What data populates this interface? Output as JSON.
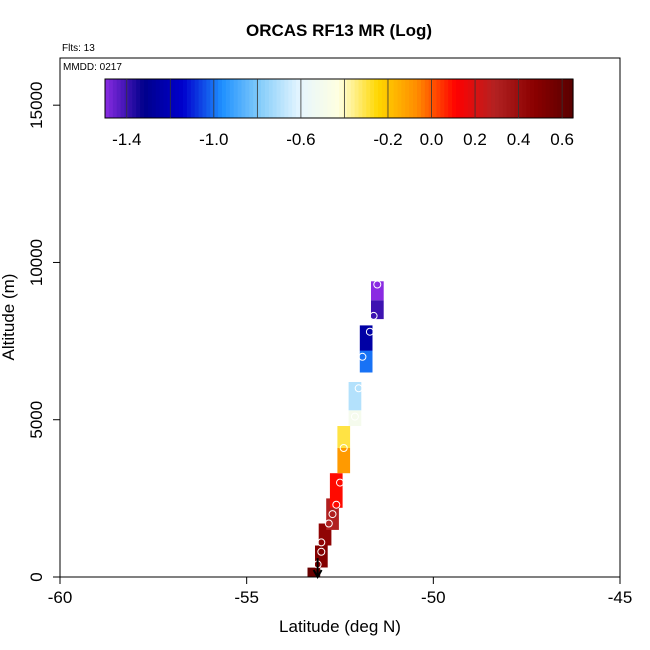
{
  "chart_data": {
    "type": "scatter",
    "title": "ORCAS RF13 MR (Log)",
    "flights_label": "Flts: 13",
    "date_label": "MMDD: 0217",
    "xlabel": "Latitude (deg N)",
    "ylabel": "Altitude (m)",
    "xlim": [
      -60,
      -45
    ],
    "ylim": [
      0,
      16500
    ],
    "x_ticks": [
      -60,
      -55,
      -50,
      -45
    ],
    "y_ticks": [
      0,
      5000,
      10000,
      15000
    ],
    "grid": false,
    "colorbar": {
      "placement": "top",
      "range": [
        -1.5,
        0.65
      ],
      "tick_values": [
        -1.4,
        -1.0,
        -0.6,
        -0.2,
        0.0,
        0.2,
        0.4,
        0.6
      ],
      "tick_labels": [
        "-1.4",
        "-1.0",
        "-0.6",
        "-0.2",
        "0.0",
        "0.2",
        "0.4",
        "0.6"
      ],
      "colors": [
        "#8a2be2",
        "#00008b",
        "#0000cd",
        "#1e90ff",
        "#87cefa",
        "#e6f6ff",
        "#ffffe0",
        "#ffd700",
        "#ff8c00",
        "#ff0000",
        "#b22222",
        "#8b0000",
        "#5a0000"
      ]
    },
    "segments": [
      {
        "lat": -53.2,
        "alt_min": 0,
        "alt_max": 300,
        "value": 0.6
      },
      {
        "lat": -53.0,
        "alt_min": 300,
        "alt_max": 1000,
        "value": 0.5
      },
      {
        "lat": -52.9,
        "alt_min": 1000,
        "alt_max": 1700,
        "value": 0.45
      },
      {
        "lat": -52.7,
        "alt_min": 1500,
        "alt_max": 2500,
        "value": 0.3
      },
      {
        "lat": -52.6,
        "alt_min": 2200,
        "alt_max": 3300,
        "value": 0.1
      },
      {
        "lat": -52.4,
        "alt_min": 3300,
        "alt_max": 4100,
        "value": -0.1
      },
      {
        "lat": -52.4,
        "alt_min": 4100,
        "alt_max": 4800,
        "value": -0.3
      },
      {
        "lat": -52.1,
        "alt_min": 4800,
        "alt_max": 5300,
        "value": -0.5
      },
      {
        "lat": -52.1,
        "alt_min": 5300,
        "alt_max": 6200,
        "value": -0.7
      },
      {
        "lat": -51.8,
        "alt_min": 6500,
        "alt_max": 7200,
        "value": -1.0
      },
      {
        "lat": -51.8,
        "alt_min": 7200,
        "alt_max": 8000,
        "value": -1.25
      },
      {
        "lat": -51.5,
        "alt_min": 8200,
        "alt_max": 8800,
        "value": -1.4
      },
      {
        "lat": -51.5,
        "alt_min": 8800,
        "alt_max": 9400,
        "value": -1.5
      }
    ],
    "points": [
      {
        "lat": -53.1,
        "alt": 400
      },
      {
        "lat": -53.0,
        "alt": 800
      },
      {
        "lat": -53.0,
        "alt": 1100
      },
      {
        "lat": -52.8,
        "alt": 1700
      },
      {
        "lat": -52.7,
        "alt": 2000
      },
      {
        "lat": -52.6,
        "alt": 2300
      },
      {
        "lat": -52.5,
        "alt": 3000
      },
      {
        "lat": -52.4,
        "alt": 4100
      },
      {
        "lat": -52.1,
        "alt": 5100
      },
      {
        "lat": -52.0,
        "alt": 6000
      },
      {
        "lat": -51.9,
        "alt": 7000
      },
      {
        "lat": -51.7,
        "alt": 7800
      },
      {
        "lat": -51.6,
        "alt": 8300
      },
      {
        "lat": -51.5,
        "alt": 9300
      }
    ],
    "arrow": {
      "lat": -53.1,
      "alt_from": 600,
      "alt_to": 0
    }
  }
}
